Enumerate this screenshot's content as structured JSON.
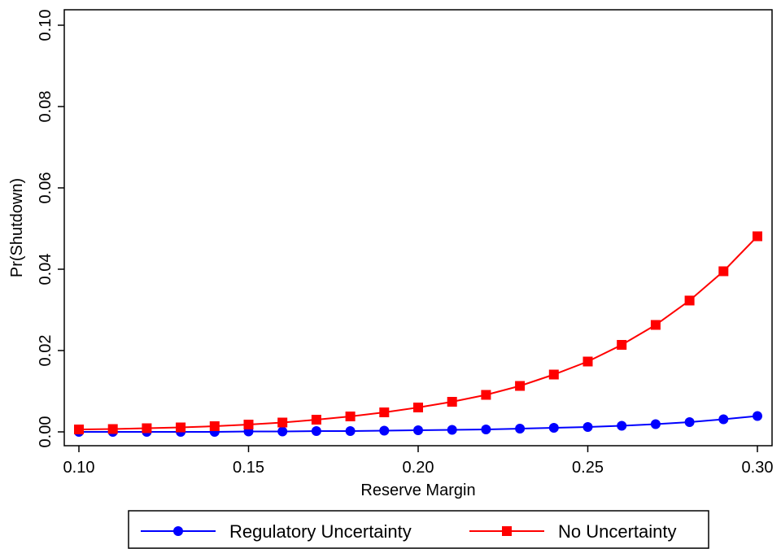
{
  "chart_data": {
    "type": "line",
    "xlabel": "Reserve Margin",
    "ylabel": "Pr(Shutdown)",
    "xlim": [
      0.1,
      0.3
    ],
    "ylim": [
      0.0,
      0.1
    ],
    "x_ticks": [
      "0.10",
      "0.15",
      "0.20",
      "0.25",
      "0.30"
    ],
    "y_ticks": [
      "0.00",
      "0.02",
      "0.04",
      "0.06",
      "0.08",
      "0.10"
    ],
    "grid": false,
    "legend_position": "bottom",
    "x": [
      0.1,
      0.11,
      0.12,
      0.13,
      0.14,
      0.15,
      0.16,
      0.17,
      0.18,
      0.19,
      0.2,
      0.21,
      0.22,
      0.23,
      0.24,
      0.25,
      0.26,
      0.27,
      0.28,
      0.29,
      0.3
    ],
    "series": [
      {
        "name": "Regulatory Uncertainty",
        "color": "#0000ff",
        "marker": "circle",
        "values": [
          0.0,
          0.0,
          0.0,
          0.0,
          0.0,
          0.0001,
          0.0001,
          0.0002,
          0.0002,
          0.0003,
          0.0004,
          0.0005,
          0.0006,
          0.0008,
          0.001,
          0.0012,
          0.0015,
          0.0019,
          0.0024,
          0.0031,
          0.0039
        ]
      },
      {
        "name": "No Uncertainty",
        "color": "#ff0000",
        "marker": "square",
        "values": [
          0.0006,
          0.0007,
          0.0009,
          0.0011,
          0.0014,
          0.0018,
          0.0023,
          0.003,
          0.0038,
          0.0048,
          0.006,
          0.0074,
          0.0091,
          0.0113,
          0.0141,
          0.0173,
          0.0214,
          0.0263,
          0.0323,
          0.0395,
          0.0481
        ]
      }
    ]
  }
}
